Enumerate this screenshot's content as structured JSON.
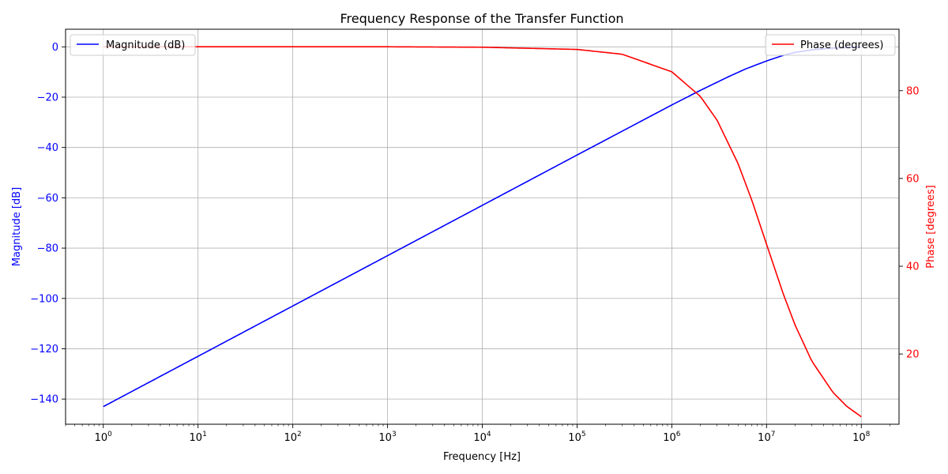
{
  "chart_data": {
    "type": "line",
    "title": "Frequency Response of the Transfer Function",
    "xlabel": "Frequency [Hz]",
    "xscale": "log",
    "xlim": [
      0.4,
      250000000
    ],
    "x_ticks": [
      1,
      10,
      100,
      1000,
      10000,
      100000,
      1000000,
      10000000,
      100000000
    ],
    "x_tick_labels": [
      {
        "base": "10",
        "exp": "0"
      },
      {
        "base": "10",
        "exp": "1"
      },
      {
        "base": "10",
        "exp": "2"
      },
      {
        "base": "10",
        "exp": "3"
      },
      {
        "base": "10",
        "exp": "4"
      },
      {
        "base": "10",
        "exp": "5"
      },
      {
        "base": "10",
        "exp": "6"
      },
      {
        "base": "10",
        "exp": "7"
      },
      {
        "base": "10",
        "exp": "8"
      }
    ],
    "grid": true,
    "left_axis": {
      "label": "Magnitude [dB]",
      "color": "#0000ff",
      "ylim": [
        -150,
        7
      ],
      "ticks": [
        0,
        -20,
        -40,
        -60,
        -80,
        -100,
        -120,
        -140
      ],
      "tick_labels": [
        "0",
        "−20",
        "−40",
        "−60",
        "−80",
        "−100",
        "−120",
        "−140"
      ]
    },
    "right_axis": {
      "label": "Phase [degrees]",
      "color": "#ff0000",
      "ylim": [
        4,
        94
      ],
      "ticks": [
        20,
        40,
        60,
        80
      ],
      "tick_labels": [
        "20",
        "40",
        "60",
        "80"
      ]
    },
    "series": [
      {
        "name": "Magnitude (dB)",
        "axis": "left",
        "color": "#0000ff",
        "x": [
          1,
          10,
          100,
          1000,
          10000,
          100000,
          1000000,
          2000000,
          4000000,
          6000000,
          10000000,
          15000000,
          20000000,
          30000000,
          50000000,
          100000000
        ],
        "y": [
          -143,
          -123,
          -103,
          -83,
          -63,
          -43,
          -23.1,
          -17.3,
          -11.8,
          -8.8,
          -5.6,
          -3.4,
          -2.2,
          -1.2,
          -0.5,
          -0.1
        ]
      },
      {
        "name": "Phase (degrees)",
        "axis": "right",
        "color": "#ff0000",
        "x": [
          1,
          10,
          100,
          1000,
          10000,
          100000,
          300000,
          1000000,
          2000000,
          3000000,
          5000000,
          7000000,
          10000000,
          15000000,
          20000000,
          30000000,
          50000000,
          70000000,
          100000000
        ],
        "y": [
          90,
          90,
          90,
          90,
          89.9,
          89.4,
          88.3,
          84.3,
          78.7,
          73.3,
          63.4,
          55.0,
          45.0,
          33.7,
          26.6,
          18.4,
          11.3,
          8.1,
          5.7
        ]
      }
    ],
    "legends": [
      {
        "placement": "upper-left",
        "entries": [
          "Magnitude (dB)"
        ]
      },
      {
        "placement": "upper-right",
        "entries": [
          "Phase (degrees)"
        ]
      }
    ]
  }
}
